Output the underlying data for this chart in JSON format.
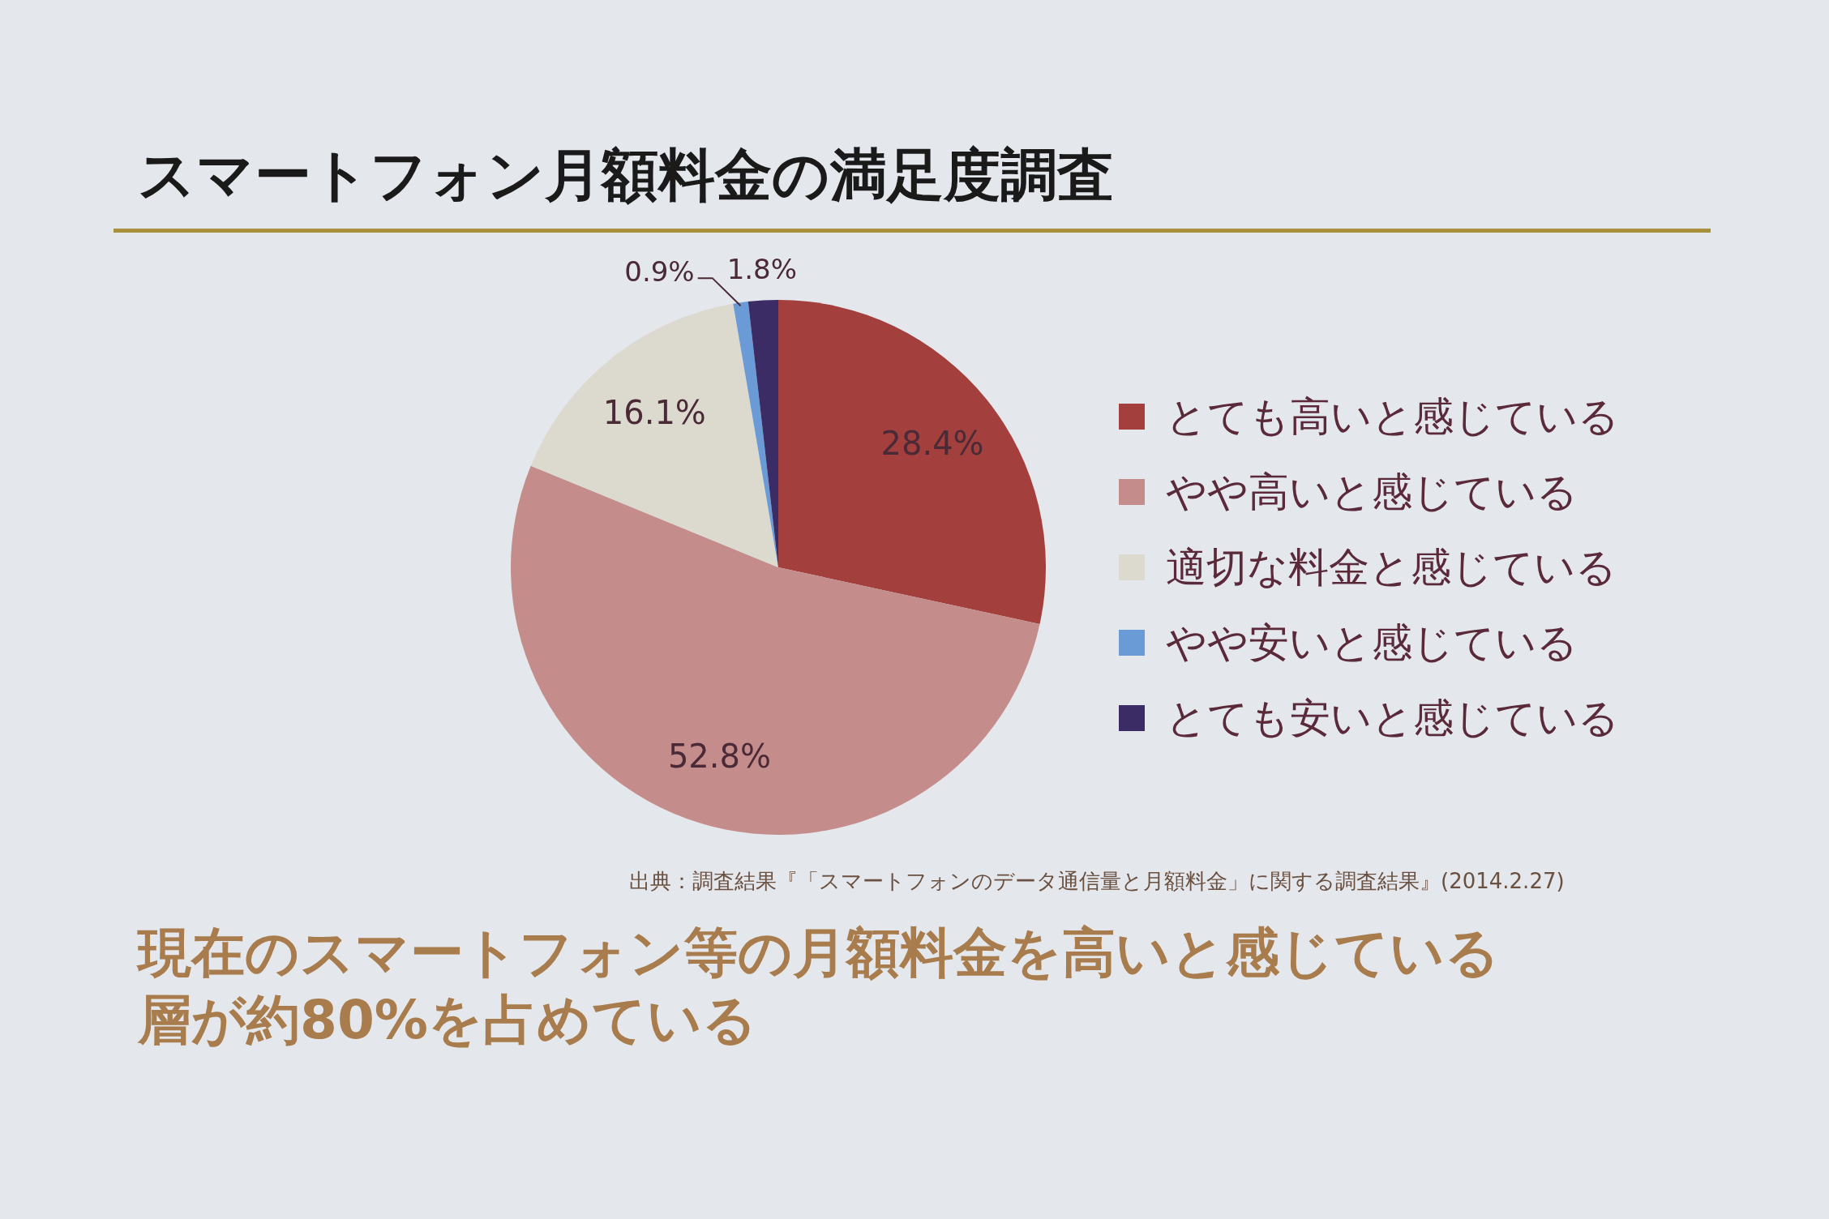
{
  "chart_data": {
    "type": "pie",
    "title": "スマートフォン月額料金の満足度調査",
    "categories": [
      "とても高いと感じている",
      "やや高いと感じている",
      "適切な料金と感じている",
      "やや安いと感じている",
      "とても安いと感じている"
    ],
    "values": [
      28.4,
      52.8,
      16.1,
      0.9,
      1.8
    ],
    "colors": [
      "#a33f3d",
      "#c48d8c",
      "#dcd9cf",
      "#6b9bd6",
      "#3b2c66"
    ],
    "value_labels": [
      "28.4%",
      "52.8%",
      "16.1%",
      "0.9%",
      "1.8%"
    ],
    "legend": "right",
    "annotations": [
      "出典：調査結果『「スマートフォンのデータ通信量と月額料金」に関する調査結果』(2014.2.27)",
      "現在のスマートフォン等の月額料金を高いと感じている層が約80%を占めている"
    ]
  }
}
